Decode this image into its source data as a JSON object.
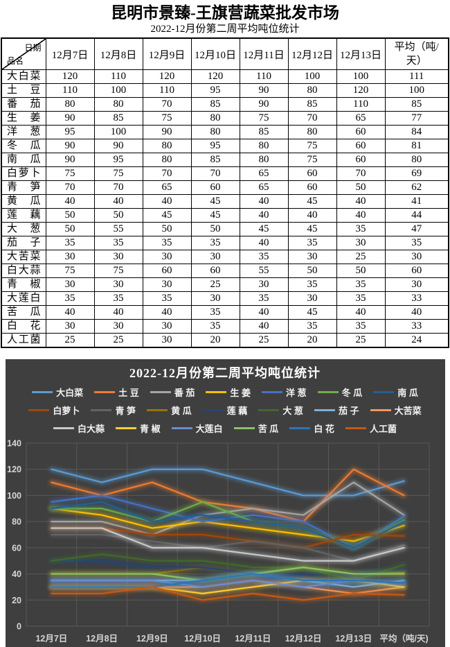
{
  "page": {
    "title": "昆明市景臻-王旗营蔬菜批发市场",
    "subtitle": "2022-12月份第二周平均吨位统计"
  },
  "table": {
    "corner": {
      "top_label": "日期",
      "bottom_label": "品名"
    },
    "date_columns": [
      "12月7日",
      "12月8日",
      "12月9日",
      "12月10日",
      "12月11日",
      "12月12日",
      "12月13日"
    ],
    "avg_column": "平均（吨/天）",
    "rows": [
      {
        "name": "大白菜",
        "values": [
          120,
          110,
          120,
          120,
          110,
          100,
          100,
          111
        ]
      },
      {
        "name": "土豆",
        "values": [
          110,
          100,
          110,
          95,
          90,
          80,
          120,
          100
        ]
      },
      {
        "name": "番茄",
        "values": [
          80,
          80,
          70,
          85,
          90,
          85,
          110,
          85
        ]
      },
      {
        "name": "生姜",
        "values": [
          90,
          85,
          75,
          80,
          75,
          70,
          65,
          77
        ]
      },
      {
        "name": "洋葱",
        "values": [
          95,
          100,
          90,
          80,
          85,
          80,
          60,
          84
        ]
      },
      {
        "name": "冬瓜",
        "values": [
          90,
          90,
          80,
          95,
          80,
          75,
          60,
          81
        ]
      },
      {
        "name": "南瓜",
        "values": [
          90,
          95,
          80,
          85,
          80,
          75,
          60,
          80
        ]
      },
      {
        "name": "白萝卜",
        "values": [
          75,
          75,
          70,
          70,
          65,
          60,
          70,
          69
        ]
      },
      {
        "name": "青笋",
        "values": [
          70,
          70,
          65,
          60,
          65,
          60,
          50,
          62
        ]
      },
      {
        "name": "黄瓜",
        "values": [
          40,
          40,
          40,
          45,
          40,
          45,
          40,
          41
        ]
      },
      {
        "name": "莲藕",
        "values": [
          50,
          50,
          45,
          45,
          40,
          40,
          40,
          44
        ]
      },
      {
        "name": "大葱",
        "values": [
          50,
          55,
          50,
          50,
          45,
          45,
          35,
          47
        ]
      },
      {
        "name": "茄子",
        "values": [
          35,
          35,
          35,
          35,
          40,
          35,
          30,
          35
        ]
      },
      {
        "name": "大苦菜",
        "values": [
          30,
          30,
          30,
          30,
          35,
          30,
          25,
          30
        ]
      },
      {
        "name": "白大蒜",
        "values": [
          75,
          75,
          60,
          60,
          55,
          50,
          50,
          60
        ]
      },
      {
        "name": "青椒",
        "values": [
          30,
          30,
          30,
          25,
          30,
          35,
          35,
          30
        ]
      },
      {
        "name": "大莲白",
        "values": [
          35,
          35,
          35,
          30,
          35,
          30,
          35,
          33
        ]
      },
      {
        "name": "苦瓜",
        "values": [
          40,
          40,
          40,
          35,
          40,
          45,
          40,
          40
        ]
      },
      {
        "name": "白花",
        "values": [
          30,
          30,
          30,
          35,
          40,
          35,
          35,
          33
        ]
      },
      {
        "name": "人工菌",
        "values": [
          25,
          25,
          30,
          20,
          25,
          20,
          25,
          24
        ]
      }
    ]
  },
  "chart_data": {
    "type": "line",
    "title": "2022-12月份第二周平均吨位统计",
    "categories": [
      "12月7日",
      "12月8日",
      "12月9日",
      "12月10日",
      "12月11日",
      "12月12日",
      "12月13日",
      "平均（吨/天)"
    ],
    "series": [
      {
        "name": "大白菜",
        "color": "#5B9BD5",
        "values": [
          120,
          110,
          120,
          120,
          110,
          100,
          100,
          111
        ]
      },
      {
        "name": "土豆",
        "color": "#ED7D31",
        "values": [
          110,
          100,
          110,
          95,
          90,
          80,
          120,
          100
        ]
      },
      {
        "name": "番茄",
        "color": "#A5A5A5",
        "values": [
          80,
          80,
          70,
          85,
          90,
          85,
          110,
          85
        ]
      },
      {
        "name": "生姜",
        "color": "#FFC000",
        "values": [
          90,
          85,
          75,
          80,
          75,
          70,
          65,
          77
        ]
      },
      {
        "name": "洋葱",
        "color": "#4472C4",
        "values": [
          95,
          100,
          90,
          80,
          85,
          80,
          60,
          84
        ]
      },
      {
        "name": "冬瓜",
        "color": "#70AD47",
        "values": [
          90,
          90,
          80,
          95,
          80,
          75,
          60,
          81
        ]
      },
      {
        "name": "南瓜",
        "color": "#255E91",
        "values": [
          90,
          95,
          80,
          85,
          80,
          75,
          60,
          80
        ]
      },
      {
        "name": "白萝卜",
        "color": "#9E480E",
        "values": [
          75,
          75,
          70,
          70,
          65,
          60,
          70,
          69
        ]
      },
      {
        "name": "青笋",
        "color": "#636363",
        "values": [
          70,
          70,
          65,
          60,
          65,
          60,
          50,
          62
        ]
      },
      {
        "name": "黄瓜",
        "color": "#997300",
        "values": [
          40,
          40,
          40,
          45,
          40,
          45,
          40,
          41
        ]
      },
      {
        "name": "莲藕",
        "color": "#264478",
        "values": [
          50,
          50,
          45,
          45,
          40,
          40,
          40,
          44
        ]
      },
      {
        "name": "大葱",
        "color": "#43682B",
        "values": [
          50,
          55,
          50,
          50,
          45,
          45,
          35,
          47
        ]
      },
      {
        "name": "茄子",
        "color": "#7CAFDD",
        "values": [
          35,
          35,
          35,
          35,
          40,
          35,
          30,
          35
        ]
      },
      {
        "name": "大苦菜",
        "color": "#F1975A",
        "values": [
          30,
          30,
          30,
          30,
          35,
          30,
          25,
          30
        ]
      },
      {
        "name": "白大蒜",
        "color": "#C9C9C9",
        "values": [
          75,
          75,
          60,
          60,
          55,
          50,
          50,
          60
        ]
      },
      {
        "name": "青椒",
        "color": "#FFCD33",
        "values": [
          30,
          30,
          30,
          25,
          30,
          35,
          35,
          30
        ]
      },
      {
        "name": "大莲白",
        "color": "#698ED0",
        "values": [
          35,
          35,
          35,
          30,
          35,
          30,
          35,
          33
        ]
      },
      {
        "name": "苦瓜",
        "color": "#8CC168",
        "values": [
          40,
          40,
          40,
          35,
          40,
          45,
          40,
          40
        ]
      },
      {
        "name": "白花",
        "color": "#2E75B6",
        "values": [
          30,
          30,
          30,
          35,
          40,
          35,
          35,
          33
        ]
      },
      {
        "name": "人工菌",
        "color": "#C55A11",
        "values": [
          25,
          25,
          30,
          20,
          25,
          20,
          25,
          24
        ]
      }
    ],
    "ylim": [
      0,
      140
    ],
    "ytick": 20,
    "grid": true,
    "legend_position": "top",
    "legend_rows": [
      7,
      7,
      6
    ],
    "background": "#3F3F3F",
    "gridline_color": "#595959",
    "axis_text_color": "#D6D6D6",
    "line_glow": true
  }
}
